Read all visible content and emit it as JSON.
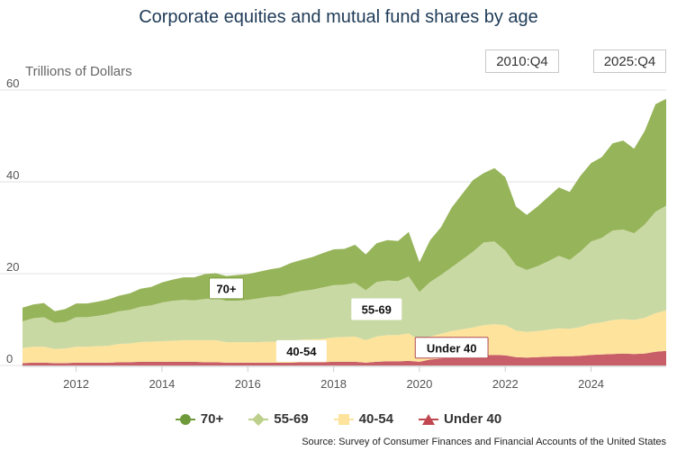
{
  "chart_data": {
    "type": "area",
    "stacked": true,
    "title": "Corporate equities and mutual fund shares by age",
    "ylabel": "Trillions of Dollars",
    "xlabel": "",
    "ylim": [
      0,
      60
    ],
    "y_ticks": [
      0,
      20,
      40,
      60
    ],
    "x_ticks": [
      "2012",
      "2014",
      "2016",
      "2018",
      "2020",
      "2022",
      "2024"
    ],
    "x_tick_values": [
      2012,
      2014,
      2016,
      2018,
      2020,
      2022,
      2024
    ],
    "xlim": [
      2010.75,
      2025.75
    ],
    "grid": true,
    "legend_position": "bottom",
    "x": [
      2010.75,
      2011.0,
      2011.25,
      2011.5,
      2011.75,
      2012.0,
      2012.25,
      2012.5,
      2012.75,
      2013.0,
      2013.25,
      2013.5,
      2013.75,
      2014.0,
      2014.25,
      2014.5,
      2014.75,
      2015.0,
      2015.25,
      2015.5,
      2015.75,
      2016.0,
      2016.25,
      2016.5,
      2016.75,
      2017.0,
      2017.25,
      2017.5,
      2017.75,
      2018.0,
      2018.25,
      2018.5,
      2018.75,
      2019.0,
      2019.25,
      2019.5,
      2019.75,
      2020.0,
      2020.25,
      2020.5,
      2020.75,
      2021.0,
      2021.25,
      2021.5,
      2021.75,
      2022.0,
      2022.25,
      2022.5,
      2022.75,
      2023.0,
      2023.25,
      2023.5,
      2023.75,
      2024.0,
      2024.25,
      2024.5,
      2024.75,
      2025.0,
      2025.25,
      2025.5,
      2025.75
    ],
    "series": [
      {
        "name": "Under 40",
        "color": "#c85e68",
        "values": [
          0.5,
          0.6,
          0.6,
          0.5,
          0.5,
          0.6,
          0.6,
          0.6,
          0.6,
          0.7,
          0.7,
          0.8,
          0.8,
          0.8,
          0.8,
          0.8,
          0.8,
          0.7,
          0.7,
          0.6,
          0.6,
          0.6,
          0.6,
          0.6,
          0.6,
          0.6,
          0.7,
          0.7,
          0.7,
          0.8,
          0.8,
          0.8,
          0.6,
          0.8,
          0.9,
          0.9,
          1.0,
          0.8,
          1.3,
          1.5,
          1.9,
          2.1,
          2.3,
          2.2,
          2.3,
          2.2,
          1.8,
          1.7,
          1.8,
          1.9,
          2.0,
          2.0,
          2.1,
          2.3,
          2.4,
          2.5,
          2.6,
          2.5,
          2.6,
          3.0,
          3.2
        ]
      },
      {
        "name": "40-54",
        "color": "#fde39c",
        "values": [
          3.3,
          3.5,
          3.5,
          3.1,
          3.2,
          3.5,
          3.5,
          3.6,
          3.7,
          4.0,
          4.1,
          4.3,
          4.4,
          4.5,
          4.6,
          4.7,
          4.7,
          4.8,
          4.8,
          4.5,
          4.5,
          4.5,
          4.5,
          4.6,
          4.6,
          4.8,
          4.9,
          5.0,
          5.1,
          5.3,
          5.4,
          5.5,
          4.9,
          5.5,
          5.7,
          5.7,
          6.0,
          4.6,
          5.0,
          5.4,
          5.6,
          5.8,
          6.0,
          6.6,
          6.7,
          6.6,
          5.8,
          5.6,
          5.7,
          5.9,
          6.1,
          6.0,
          6.3,
          6.8,
          7.0,
          7.4,
          7.5,
          7.4,
          7.8,
          8.4,
          8.8
        ]
      },
      {
        "name": "55-69",
        "color": "#c9d9a4",
        "values": [
          5.8,
          6.2,
          6.4,
          5.7,
          5.8,
          6.4,
          6.4,
          6.6,
          6.9,
          7.1,
          7.3,
          7.7,
          7.9,
          8.4,
          8.7,
          8.8,
          8.7,
          9.0,
          9.2,
          9.0,
          9.0,
          9.2,
          9.5,
          9.8,
          9.9,
          10.3,
          10.6,
          10.8,
          11.2,
          11.4,
          11.4,
          11.7,
          10.9,
          11.9,
          11.9,
          11.8,
          12.4,
          10.6,
          11.9,
          12.8,
          13.9,
          15.2,
          16.5,
          18.0,
          18.0,
          16.2,
          14.2,
          13.5,
          14.1,
          14.9,
          15.8,
          15.0,
          16.4,
          17.9,
          18.4,
          19.5,
          19.5,
          18.9,
          20.3,
          22.1,
          22.8
        ]
      },
      {
        "name": "70+",
        "color": "#96b459",
        "values": [
          3.0,
          3.0,
          3.1,
          2.5,
          2.8,
          3.0,
          3.0,
          3.1,
          3.2,
          3.4,
          3.6,
          3.9,
          4.0,
          4.4,
          4.6,
          4.9,
          5.0,
          5.4,
          5.4,
          5.4,
          5.6,
          5.6,
          5.8,
          5.9,
          6.2,
          6.6,
          6.8,
          7.1,
          7.5,
          7.8,
          7.8,
          8.3,
          7.8,
          8.4,
          8.8,
          8.7,
          9.7,
          6.5,
          9.1,
          10.4,
          13.0,
          14.3,
          15.6,
          15.1,
          16.0,
          16.0,
          12.8,
          12.0,
          13.0,
          14.0,
          14.9,
          14.8,
          16.5,
          17.1,
          17.6,
          19.0,
          19.4,
          18.4,
          20.4,
          23.4,
          23.3
        ]
      }
    ],
    "annotations": [
      {
        "text": "70+",
        "series": "70+",
        "x": 2015.5
      },
      {
        "text": "55-69",
        "series": "55-69",
        "x": 2018.9
      },
      {
        "text": "40-54",
        "series": "40-54",
        "x": 2017.25
      },
      {
        "text": "Under 40",
        "series": "Under 40",
        "x": 2020.75
      }
    ]
  },
  "range_selector": {
    "start": "2010:Q4",
    "end": "2025:Q4"
  },
  "legend": [
    {
      "label": "70+",
      "marker": "circle",
      "color": "#6f9a3a"
    },
    {
      "label": "55-69",
      "marker": "diamond",
      "color": "#bcd08c"
    },
    {
      "label": "40-54",
      "marker": "square",
      "color": "#fde39c"
    },
    {
      "label": "Under 40",
      "marker": "triangle",
      "color": "#c0474f"
    }
  ],
  "source": "Source: Survey of Consumer Finances and Financial Accounts of the United States"
}
